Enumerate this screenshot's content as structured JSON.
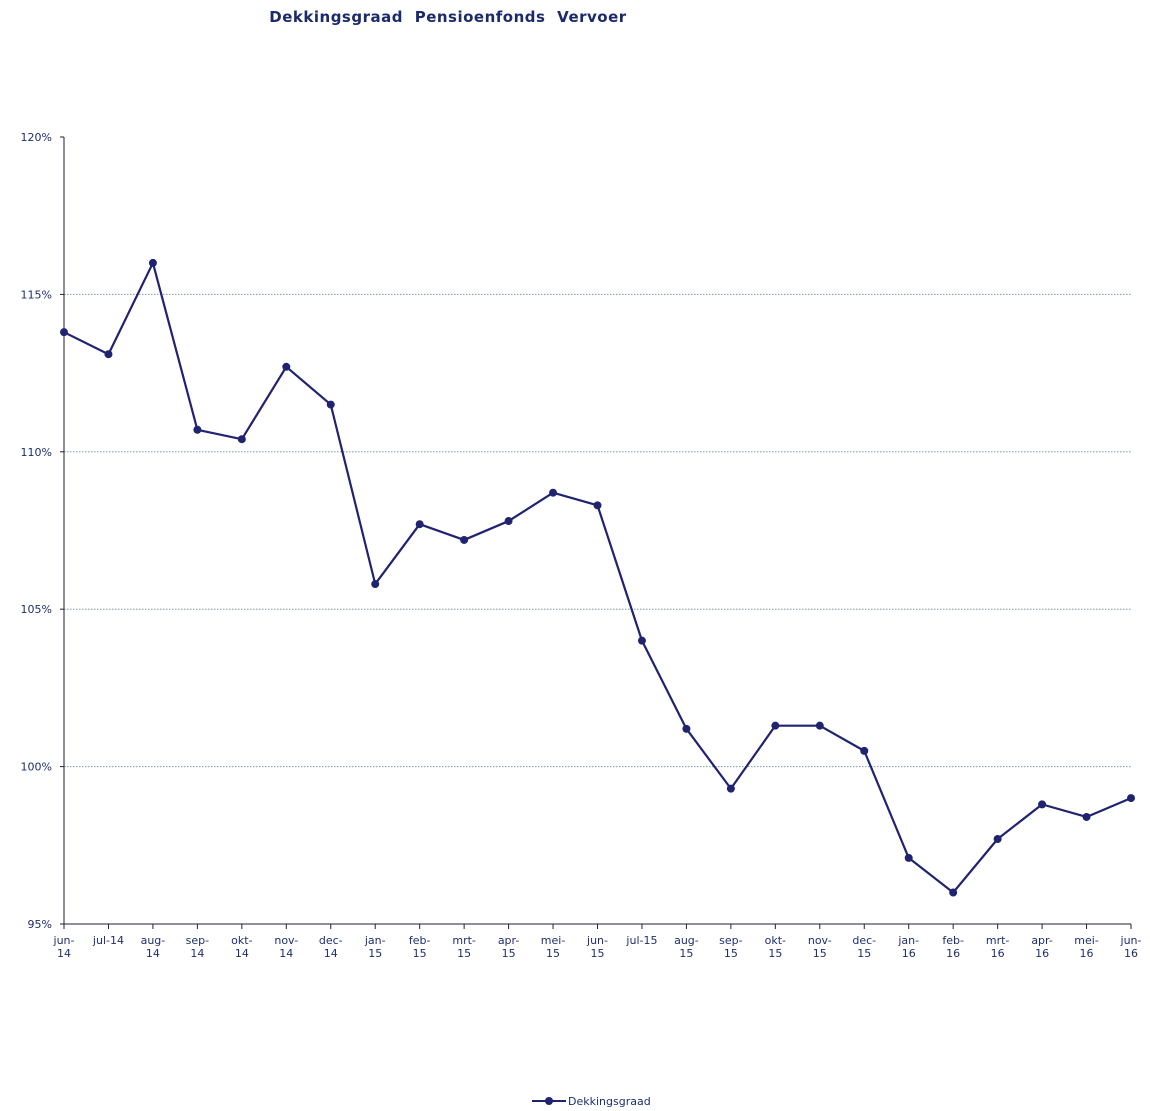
{
  "chart_data": {
    "type": "line",
    "title": "Dekkingsgraad  Pensioenfonds  Vervoer",
    "xlabel": "",
    "ylabel": "",
    "ylim": [
      95,
      120
    ],
    "yticks": [
      95,
      100,
      105,
      110,
      115,
      120
    ],
    "ytick_labels": [
      "95%",
      "100%",
      "105%",
      "110%",
      "115%",
      "120%"
    ],
    "grid": "horizontal dotted at 100, 105, 110, 115",
    "legend": "bottom-center",
    "categories": [
      [
        "jun-",
        "14"
      ],
      [
        "jul-14"
      ],
      [
        "aug-",
        "14"
      ],
      [
        "sep-",
        "14"
      ],
      [
        "okt-",
        "14"
      ],
      [
        "nov-",
        "14"
      ],
      [
        "dec-",
        "14"
      ],
      [
        "jan-",
        "15"
      ],
      [
        "feb-",
        "15"
      ],
      [
        "mrt-",
        "15"
      ],
      [
        "apr-",
        "15"
      ],
      [
        "mei-",
        "15"
      ],
      [
        "jun-",
        "15"
      ],
      [
        "jul-15"
      ],
      [
        "aug-",
        "15"
      ],
      [
        "sep-",
        "15"
      ],
      [
        "okt-",
        "15"
      ],
      [
        "nov-",
        "15"
      ],
      [
        "dec-",
        "15"
      ],
      [
        "jan-",
        "16"
      ],
      [
        "feb-",
        "16"
      ],
      [
        "mrt-",
        "16"
      ],
      [
        "apr-",
        "16"
      ],
      [
        "mei-",
        "16"
      ],
      [
        "jun-",
        "16"
      ]
    ],
    "series": [
      {
        "name": "Dekkingsgraad",
        "color": "#1f2370",
        "values": [
          113.8,
          113.1,
          116.0,
          110.7,
          110.4,
          112.7,
          111.5,
          105.8,
          107.7,
          107.2,
          107.8,
          108.7,
          108.3,
          104.0,
          101.2,
          99.3,
          101.3,
          101.3,
          100.5,
          97.1,
          96.0,
          97.7,
          98.8,
          98.4,
          99.0
        ]
      }
    ]
  }
}
